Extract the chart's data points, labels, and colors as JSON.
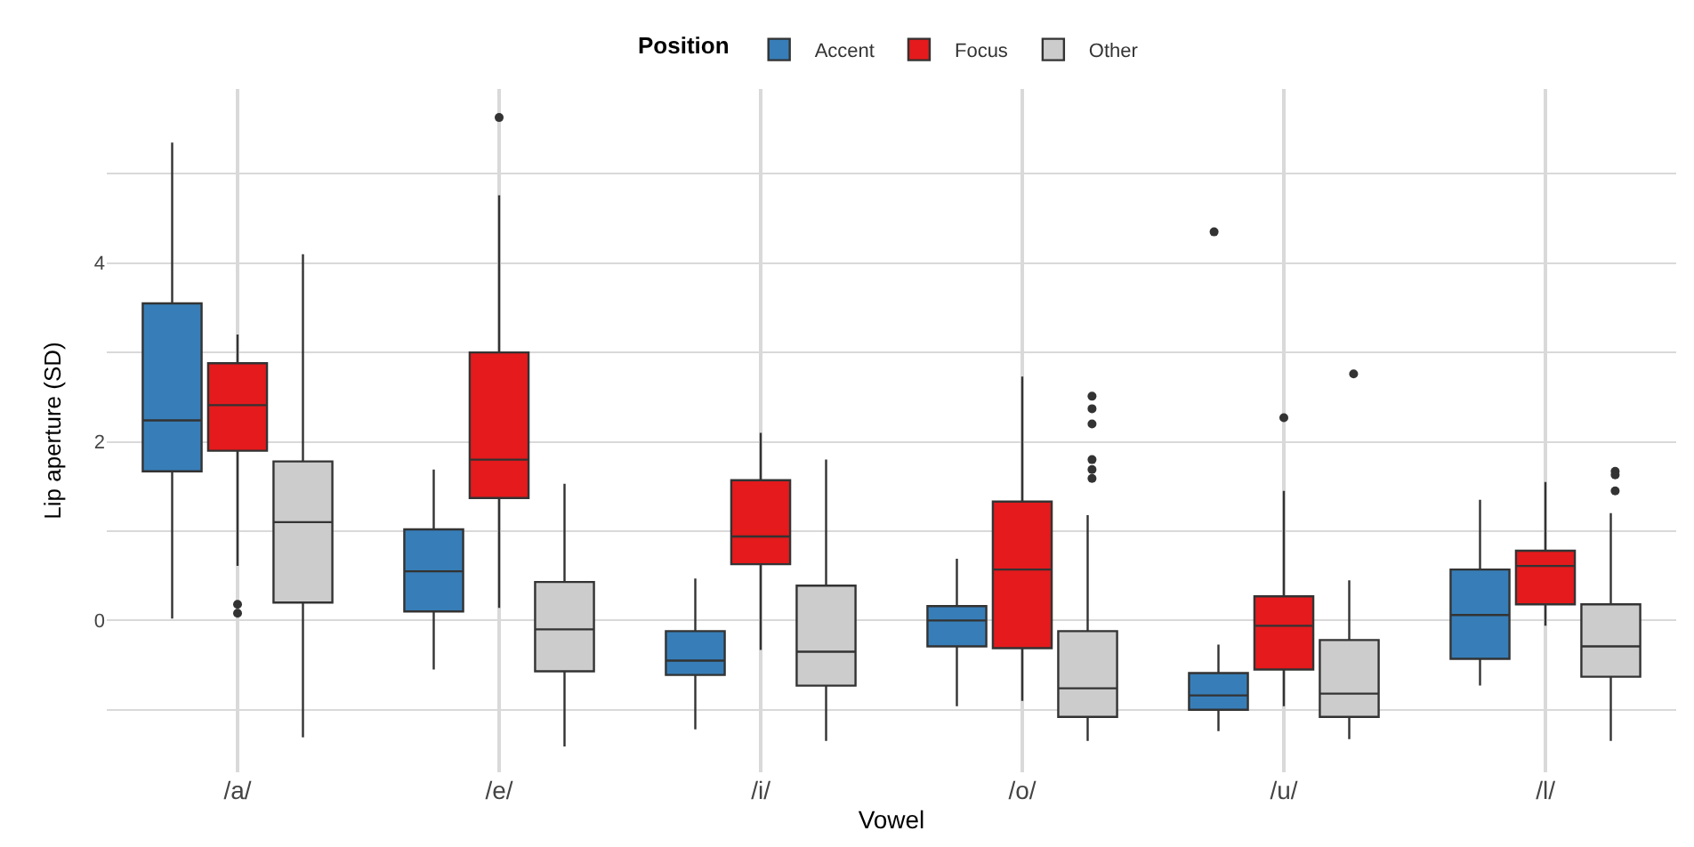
{
  "chart_data": {
    "type": "box",
    "xlabel": "Vowel",
    "ylabel": "Lip aperture (SD)",
    "legend_title": "Position",
    "legend": "top",
    "grid": true,
    "categories": [
      "/a/",
      "/e/",
      "/i/",
      "/o/",
      "/u/",
      "/l/"
    ],
    "ylim": [
      -1.7,
      5.95
    ],
    "yticks": [
      {
        "value": -1,
        "label": null
      },
      0,
      {
        "value": 1,
        "label": null
      },
      2,
      {
        "value": 3,
        "label": null
      },
      4,
      {
        "value": 5,
        "label": null
      }
    ],
    "series": [
      {
        "name": "Accent",
        "color": "#377eb8",
        "boxes": [
          {
            "low": 0.02,
            "q1": 1.67,
            "median": 2.24,
            "q3": 3.55,
            "high": 5.35
          },
          {
            "low": -0.55,
            "q1": 0.1,
            "median": 0.55,
            "q3": 1.02,
            "high": 1.69
          },
          {
            "low": -1.22,
            "q1": -0.61,
            "median": -0.45,
            "q3": -0.12,
            "high": 0.47
          },
          {
            "low": -0.96,
            "q1": -0.29,
            "median": 0.0,
            "q3": 0.16,
            "high": 0.69
          },
          {
            "low": -1.24,
            "q1": -1.0,
            "median": -0.84,
            "q3": -0.59,
            "high": -0.27,
            "outliers": [
              4.35
            ]
          },
          {
            "low": -0.73,
            "q1": -0.43,
            "median": 0.06,
            "q3": 0.57,
            "high": 1.35
          }
        ]
      },
      {
        "name": "Focus",
        "color": "#e41a1c",
        "boxes": [
          {
            "low": 0.61,
            "q1": 1.9,
            "median": 2.41,
            "q3": 2.88,
            "high": 3.2,
            "outliers": [
              0.18,
              0.08
            ]
          },
          {
            "low": 0.14,
            "q1": 1.37,
            "median": 1.8,
            "q3": 3.0,
            "high": 4.76,
            "outliers": [
              5.63
            ]
          },
          {
            "low": -0.33,
            "q1": 0.63,
            "median": 0.94,
            "q3": 1.57,
            "high": 2.1
          },
          {
            "low": -0.9,
            "q1": -0.31,
            "median": 0.57,
            "q3": 1.33,
            "high": 2.73
          },
          {
            "low": -0.96,
            "q1": -0.55,
            "median": -0.06,
            "q3": 0.27,
            "high": 1.45,
            "outliers": [
              2.27
            ]
          },
          {
            "low": -0.06,
            "q1": 0.18,
            "median": 0.61,
            "q3": 0.78,
            "high": 1.55
          }
        ]
      },
      {
        "name": "Other",
        "color": "#cccccc",
        "boxes": [
          {
            "low": -1.31,
            "q1": 0.2,
            "median": 1.1,
            "q3": 1.78,
            "high": 4.1
          },
          {
            "low": -1.41,
            "q1": -0.57,
            "median": -0.1,
            "q3": 0.43,
            "high": 1.53
          },
          {
            "low": -1.35,
            "q1": -0.73,
            "median": -0.35,
            "q3": 0.39,
            "high": 1.8
          },
          {
            "low": -1.35,
            "q1": -1.08,
            "median": -0.76,
            "q3": -0.12,
            "high": 1.18,
            "outliers": [
              2.51,
              2.37,
              2.2,
              1.8,
              1.69,
              1.59
            ]
          },
          {
            "low": -1.33,
            "q1": -1.08,
            "median": -0.82,
            "q3": -0.22,
            "high": 0.45,
            "outliers": [
              2.76
            ]
          },
          {
            "low": -1.35,
            "q1": -0.63,
            "median": -0.29,
            "q3": 0.18,
            "high": 1.2,
            "outliers": [
              1.67,
              1.63,
              1.45
            ]
          }
        ]
      }
    ]
  }
}
